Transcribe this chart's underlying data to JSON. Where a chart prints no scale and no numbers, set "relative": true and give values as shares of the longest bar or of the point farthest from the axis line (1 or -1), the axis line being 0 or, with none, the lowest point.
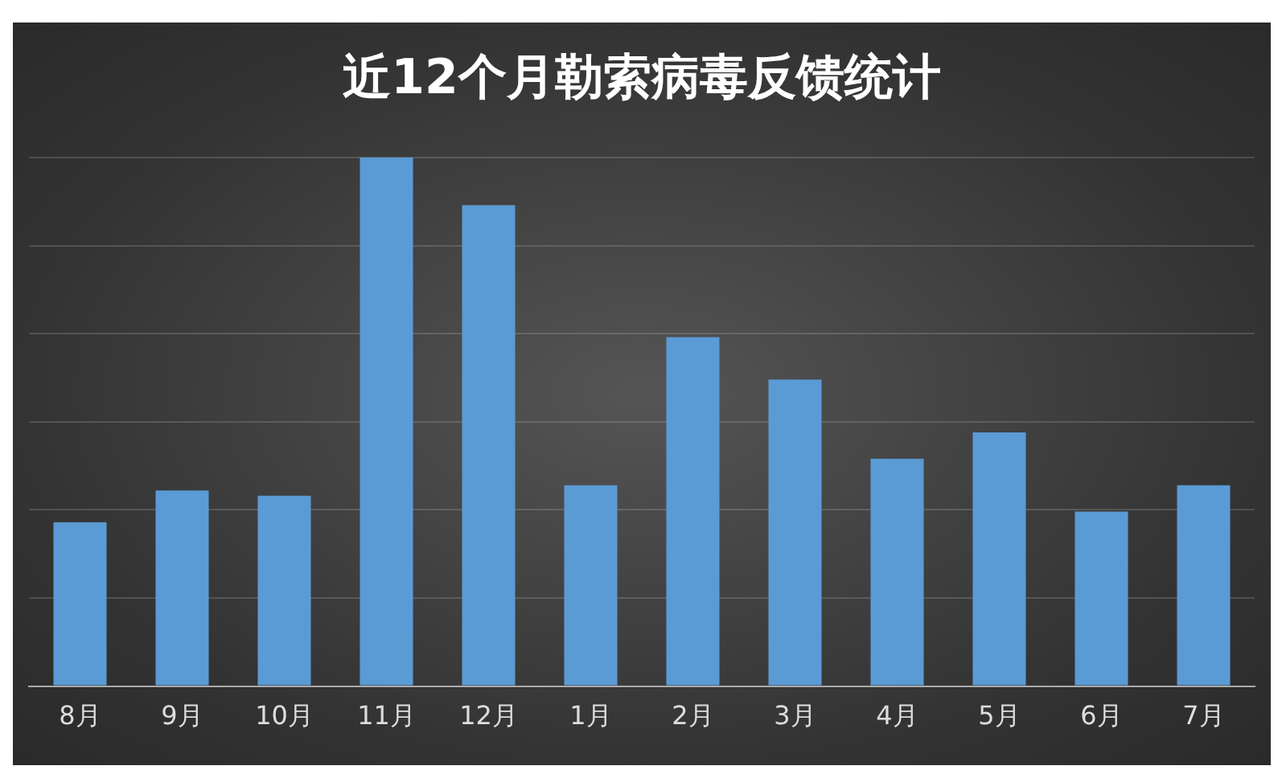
{
  "chart_data": {
    "type": "bar",
    "title": "近12个月勒索病毒反馈统计",
    "categories": [
      "8月",
      "9月",
      "10月",
      "11月",
      "12月",
      "1月",
      "2月",
      "3月",
      "4月",
      "5月",
      "6月",
      "7月"
    ],
    "values": [
      0.31,
      0.37,
      0.36,
      1,
      0.91,
      0.38,
      0.66,
      0.58,
      0.43,
      0.48,
      0.33,
      0.38
    ],
    "color": "#5b9bd5",
    "relative": true,
    "grid": "y",
    "legend": false
  }
}
